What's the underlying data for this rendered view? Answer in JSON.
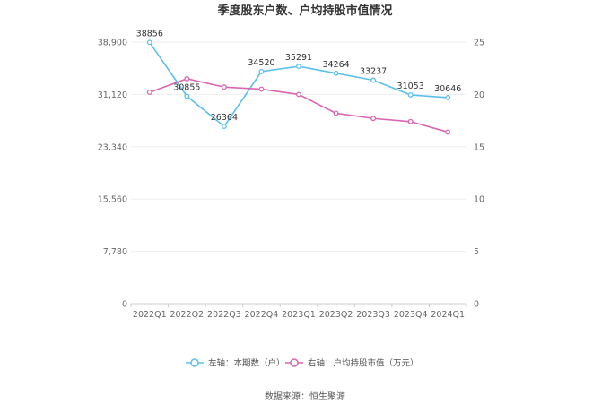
{
  "chart_data": {
    "type": "line",
    "title": "季度股东户数、户均持股市值情况",
    "categories": [
      "2022Q1",
      "2022Q2",
      "2022Q3",
      "2022Q4",
      "2023Q1",
      "2023Q2",
      "2023Q3",
      "2023Q4",
      "2024Q1"
    ],
    "left_axis": {
      "min": 0,
      "max": 38900,
      "ticks": [
        "0",
        "7,780",
        "15,560",
        "23,340",
        "31,120",
        "38,900"
      ]
    },
    "right_axis": {
      "min": 0,
      "max": 25,
      "ticks": [
        "0",
        "5",
        "10",
        "15",
        "20",
        "25"
      ]
    },
    "series": [
      {
        "name": "左轴：本期数（户）",
        "axis": "left",
        "color": "#5bc0eb",
        "values": [
          38856,
          30855,
          26364,
          34520,
          35291,
          34264,
          33237,
          31053,
          30646
        ],
        "labels": [
          "38856",
          "30855",
          "26364",
          "34520",
          "35291",
          "34264",
          "33237",
          "31053",
          "30646"
        ]
      },
      {
        "name": "右轴：户均持股市值（万元）",
        "axis": "right",
        "color": "#d966b0",
        "values": [
          20.2,
          21.5,
          20.7,
          20.5,
          20.0,
          18.2,
          17.7,
          17.4,
          16.4
        ]
      }
    ],
    "grid": true,
    "legend": "bottom"
  },
  "source": "数据来源：恒生聚源"
}
